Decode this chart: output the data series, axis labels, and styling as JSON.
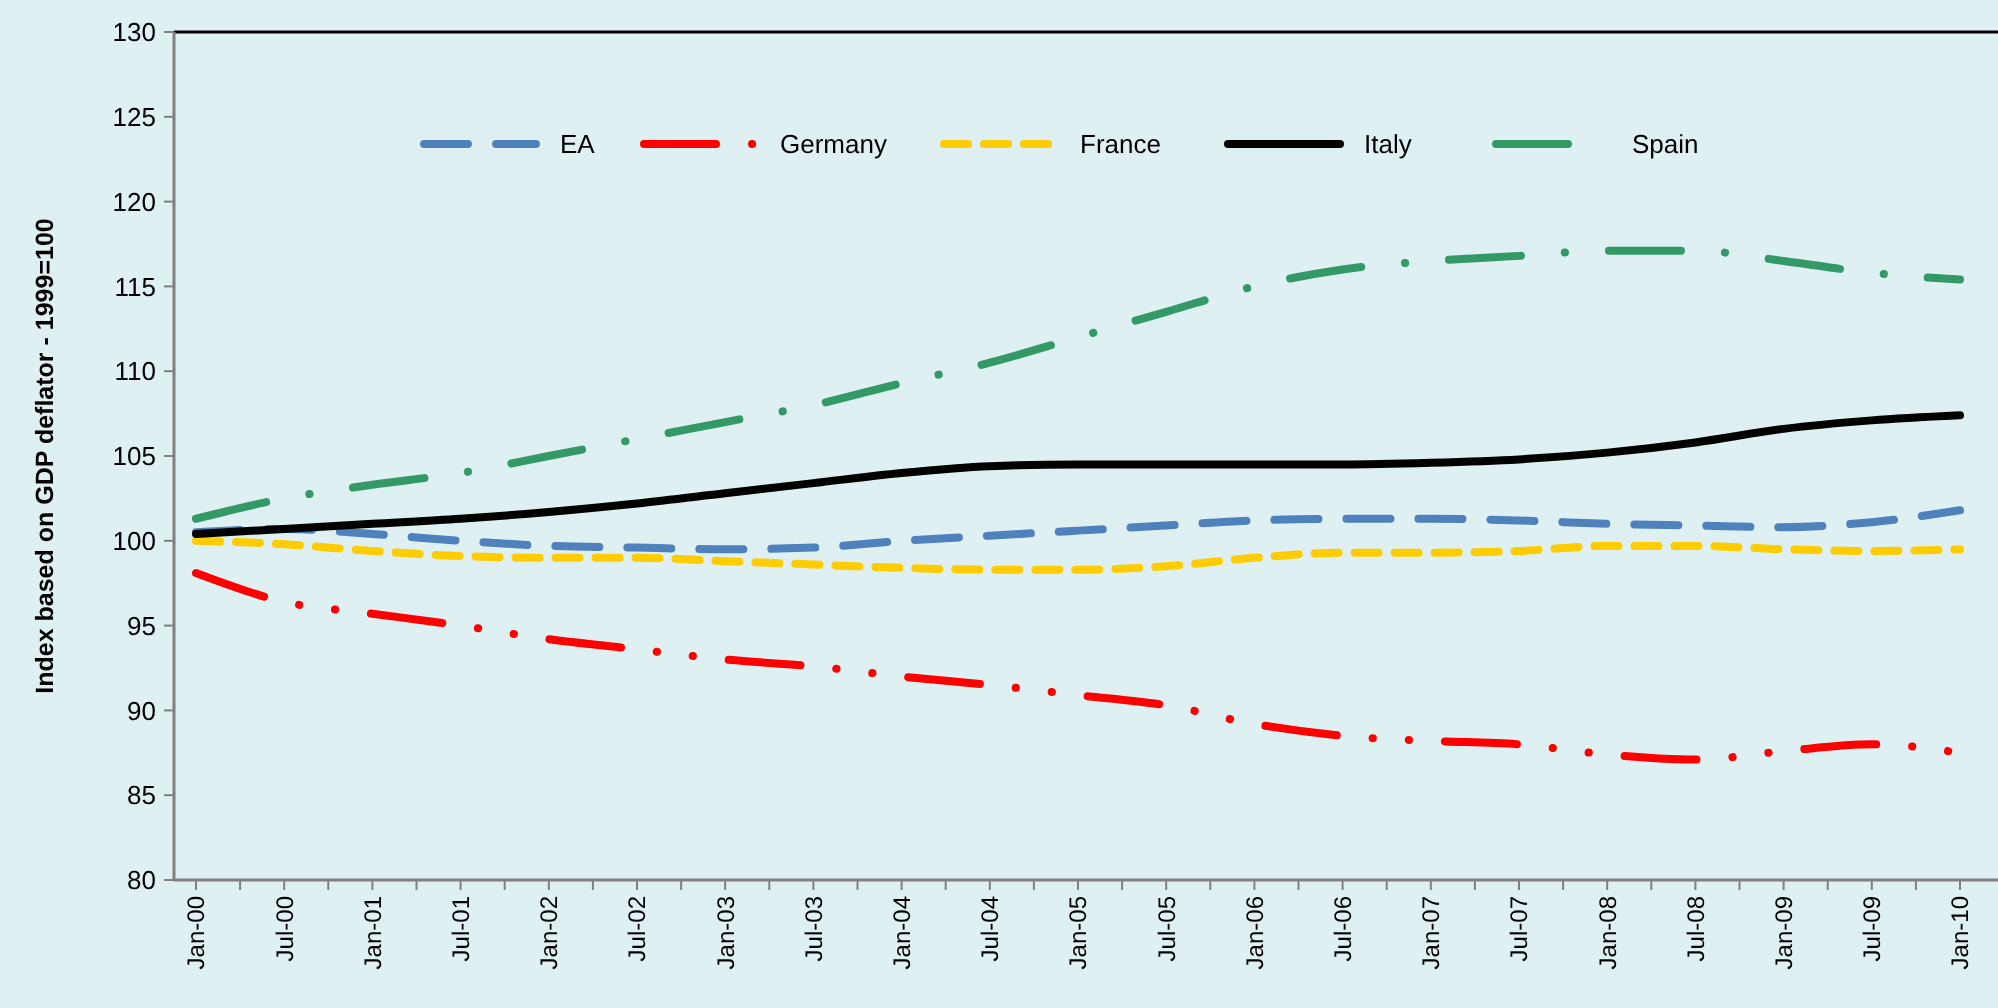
{
  "chart_data": {
    "type": "line",
    "ylabel": "Index based on GDP deflator - 1999=100",
    "categories": [
      "Jan-00",
      "Jul-00",
      "Jan-01",
      "Jul-01",
      "Jan-02",
      "Jul-02",
      "Jan-03",
      "Jul-03",
      "Jan-04",
      "Jul-04",
      "Jan-05",
      "Jul-05",
      "Jan-06",
      "Jul-06",
      "Jan-07",
      "Jul-07",
      "Jan-08",
      "Jul-08",
      "Jan-09",
      "Jul-09",
      "Jan-10"
    ],
    "series": [
      {
        "name": "EA",
        "color": "#4f81bd",
        "line_style": "dashed",
        "values": [
          100.5,
          100.7,
          100.4,
          100,
          99.7,
          99.6,
          99.5,
          99.6,
          100,
          100.3,
          100.6,
          100.9,
          101.2,
          101.3,
          101.3,
          101.2,
          101,
          100.9,
          100.8,
          101.1,
          101.8
        ]
      },
      {
        "name": "Germany",
        "color": "#ff0000",
        "line_style": "dashdotdot",
        "values": [
          98.1,
          96.4,
          95.7,
          95,
          94.2,
          93.6,
          93,
          92.6,
          92,
          91.5,
          90.9,
          90.3,
          89.2,
          88.5,
          88.2,
          88,
          87.4,
          87.1,
          87.6,
          88,
          87.5
        ]
      },
      {
        "name": "France",
        "color": "#ffcc00",
        "line_style": "dotted",
        "values": [
          100,
          99.8,
          99.4,
          99.1,
          99,
          99,
          98.8,
          98.6,
          98.4,
          98.3,
          98.3,
          98.5,
          99,
          99.3,
          99.3,
          99.4,
          99.7,
          99.7,
          99.5,
          99.4,
          99.5
        ]
      },
      {
        "name": "Italy",
        "color": "#000000",
        "line_style": "solid",
        "values": [
          100.4,
          100.7,
          101,
          101.3,
          101.7,
          102.2,
          102.8,
          103.4,
          104,
          104.4,
          104.5,
          104.5,
          104.5,
          104.5,
          104.6,
          104.8,
          105.2,
          105.8,
          106.6,
          107.1,
          107.4
        ]
      },
      {
        "name": "Spain",
        "color": "#339966",
        "line_style": "dashdot",
        "values": [
          101.3,
          102.5,
          103.3,
          104,
          105,
          106,
          107,
          108,
          109.3,
          110.5,
          112,
          113.5,
          115,
          116,
          116.5,
          116.8,
          117.1,
          117.1,
          116.5,
          115.8,
          115.4
        ]
      }
    ],
    "ylim": [
      80,
      130
    ],
    "yticks": [
      80,
      85,
      90,
      95,
      100,
      105,
      110,
      115,
      120,
      125,
      130
    ],
    "grid": false,
    "legend": "top",
    "marker": "none"
  }
}
